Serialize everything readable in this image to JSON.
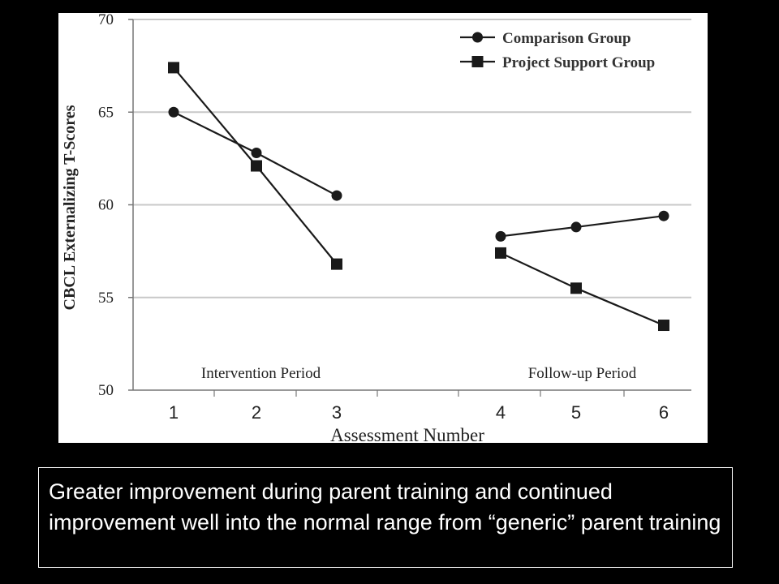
{
  "chart_data": {
    "type": "line",
    "title": "",
    "xlabel": "Assessment Number",
    "ylabel": "CBCL Externalizing T-Scores",
    "categories": [
      "1",
      "2",
      "3",
      "4",
      "5",
      "6"
    ],
    "ylim": [
      50,
      70
    ],
    "yticks": [
      50,
      55,
      60,
      65,
      70
    ],
    "grid": true,
    "legend_position": "top-right",
    "segments": [
      {
        "label": "Intervention Period",
        "indices": [
          0,
          1,
          2
        ]
      },
      {
        "label": "Follow-up Period",
        "indices": [
          3,
          4,
          5
        ]
      }
    ],
    "series": [
      {
        "name": "Comparison Group",
        "marker": "circle",
        "values": [
          65.0,
          62.8,
          60.5,
          58.3,
          58.8,
          59.4
        ]
      },
      {
        "name": "Project Support Group",
        "marker": "square",
        "values": [
          67.4,
          62.1,
          56.8,
          57.4,
          55.5,
          53.5
        ]
      }
    ],
    "colors": {
      "line": "#1a1a1a",
      "grid": "#c8c8c8",
      "axis": "#777777"
    }
  },
  "caption": "Greater improvement during parent training and continued improvement well into the normal range from “generic” parent training"
}
